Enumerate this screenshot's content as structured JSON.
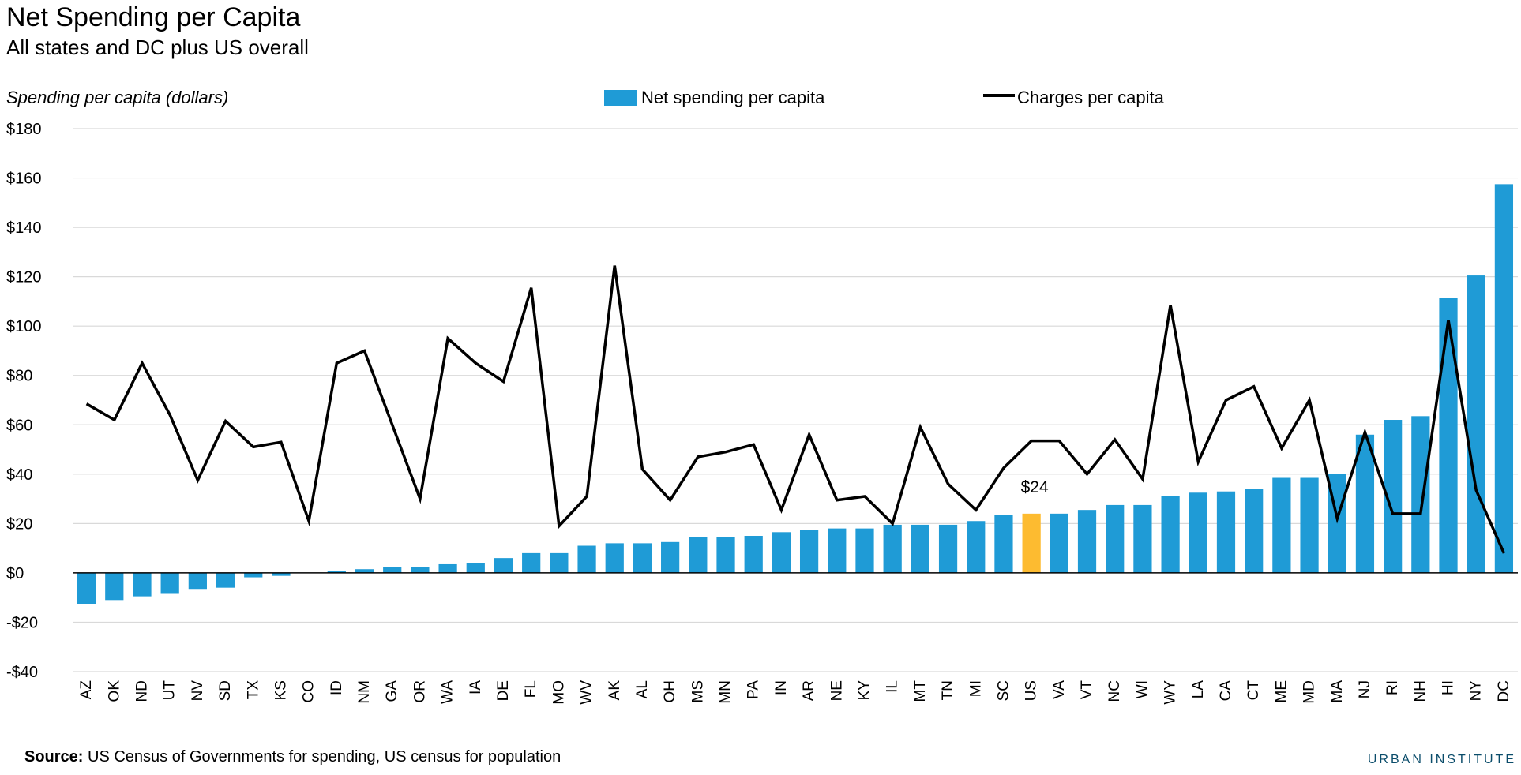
{
  "chart_data": {
    "type": "bar",
    "title": "Net Spending per Capita",
    "subtitle": "All states and DC plus US overall",
    "ylabel": "Spending per capita (dollars)",
    "ylim": [
      -40,
      180
    ],
    "yticks": [
      180,
      160,
      140,
      120,
      100,
      80,
      60,
      40,
      20,
      0,
      -20,
      -40
    ],
    "ytick_labels": [
      "$180",
      "$160",
      "$140",
      "$120",
      "$100",
      "$80",
      "$60",
      "$40",
      "$20",
      "$0",
      "-$20",
      "-$40"
    ],
    "grid": true,
    "legend_position": "top",
    "categories": [
      "AZ",
      "OK",
      "ND",
      "UT",
      "NV",
      "SD",
      "TX",
      "KS",
      "CO",
      "ID",
      "NM",
      "GA",
      "OR",
      "WA",
      "IA",
      "DE",
      "FL",
      "MO",
      "WV",
      "AK",
      "AL",
      "OH",
      "MS",
      "MN",
      "PA",
      "IN",
      "AR",
      "NE",
      "KY",
      "IL",
      "MT",
      "TN",
      "MI",
      "SC",
      "US",
      "VA",
      "VT",
      "NC",
      "WI",
      "WY",
      "LA",
      "CA",
      "CT",
      "ME",
      "MD",
      "MA",
      "NJ",
      "RI",
      "NH",
      "HI",
      "NY",
      "DC"
    ],
    "series": [
      {
        "name": "Net spending per capita",
        "type": "bar",
        "color": "#1f9bd6",
        "values": [
          -12.5,
          -11,
          -9.5,
          -8.5,
          -6.5,
          -6,
          -1.8,
          -1.2,
          0,
          0.8,
          1.5,
          2.5,
          2.5,
          3.5,
          4,
          6,
          8,
          8,
          11,
          12,
          12,
          12.5,
          14.5,
          14.5,
          15,
          16.5,
          17.5,
          18,
          18,
          19.5,
          19.5,
          19.5,
          21,
          23.5,
          24,
          24,
          25.5,
          27.5,
          27.5,
          31,
          32.5,
          33,
          34,
          38.5,
          38.5,
          40,
          56,
          62,
          63.5,
          111.5,
          120.5,
          157.5
        ]
      },
      {
        "name": "Charges per capita",
        "type": "line",
        "color": "#000000",
        "values": [
          68.5,
          62,
          85,
          64,
          37.5,
          61.5,
          51,
          53,
          21,
          85,
          90,
          60,
          30,
          95,
          85,
          77.5,
          115.5,
          19,
          31,
          124.5,
          42,
          29.5,
          47,
          49,
          52,
          25.5,
          56,
          29.5,
          31,
          20,
          59,
          36,
          25.5,
          42.5,
          53.5,
          53.5,
          40,
          54,
          38,
          108.5,
          45,
          70,
          75.5,
          50.5,
          70,
          22,
          57,
          24,
          24,
          102.5,
          33.5,
          8
        ]
      }
    ],
    "highlight": {
      "category": "US",
      "color": "#fdbb30",
      "label": "$24"
    },
    "source_label": "Source:",
    "source_text": " US Census of Governments for spending, US census for population",
    "brand": "URBAN INSTITUTE"
  }
}
